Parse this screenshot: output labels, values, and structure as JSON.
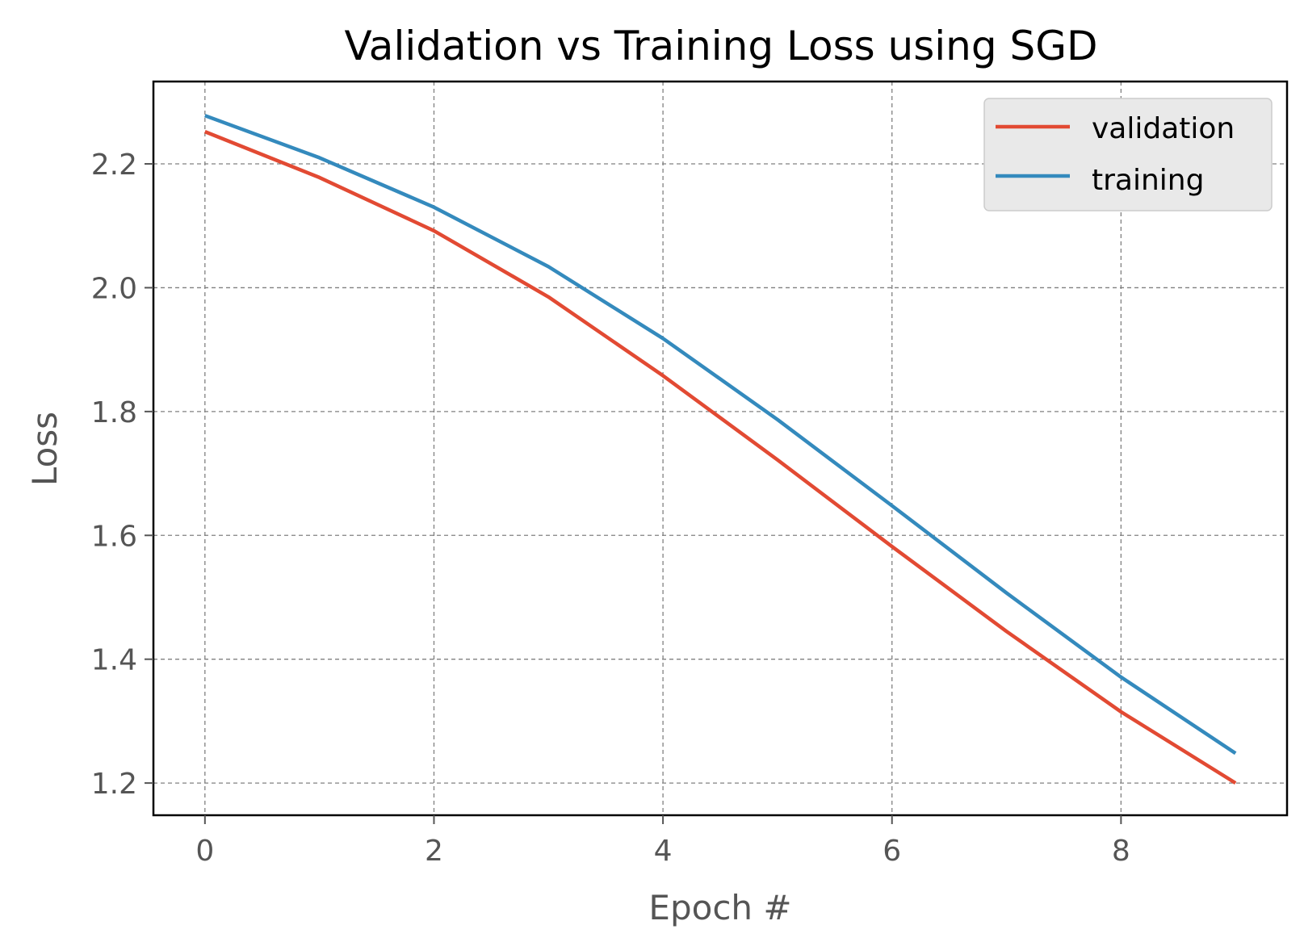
{
  "chart_data": {
    "type": "line",
    "title": "Validation vs Training Loss using SGD",
    "xlabel": "Epoch #",
    "ylabel": "Loss",
    "xlim": [
      -0.45,
      9.45
    ],
    "ylim": [
      1.148,
      2.333
    ],
    "x_ticks": [
      0,
      2,
      4,
      6,
      8
    ],
    "x_tick_labels": [
      "0",
      "2",
      "4",
      "6",
      "8"
    ],
    "y_ticks": [
      1.2,
      1.4,
      1.6,
      1.8,
      2.0,
      2.2
    ],
    "y_tick_labels": [
      "1.2",
      "1.4",
      "1.6",
      "1.8",
      "2.0",
      "2.2"
    ],
    "grid": true,
    "legend_position": "top-right",
    "x": [
      0,
      1,
      2,
      3,
      4,
      5,
      6,
      7,
      8,
      9
    ],
    "series": [
      {
        "name": "validation",
        "color": "#e24a33",
        "values": [
          2.252,
          2.178,
          2.092,
          1.985,
          1.858,
          1.722,
          1.582,
          1.445,
          1.315,
          1.2
        ]
      },
      {
        "name": "training",
        "color": "#348abd",
        "values": [
          2.278,
          2.21,
          2.13,
          2.034,
          1.918,
          1.787,
          1.648,
          1.507,
          1.371,
          1.248
        ]
      }
    ]
  }
}
